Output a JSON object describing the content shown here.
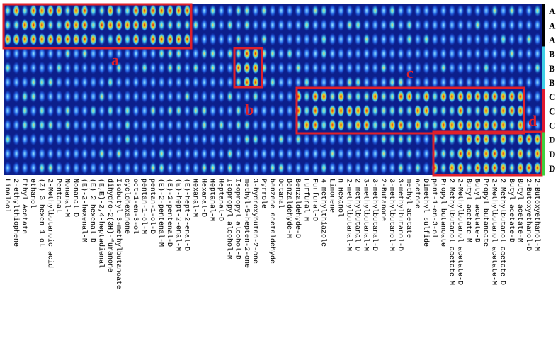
{
  "heatmap": {
    "column_labels": [
      "Linalool",
      "2-ethylthiophene",
      "Ethyl Acetate",
      "ethanol",
      "(Z)-3-hexen-1-ol",
      "2-Methylbutanoic acid",
      "Pentanal",
      "Nonanal-M",
      "Nonanal-D",
      "(E)-2-hexenal-M",
      "(E)-2-hexenal-D",
      "(E,E)-2,4-heptadienal",
      "dihydro-2(3H)-furanone",
      "Isobutyl 3-methylbutanoate",
      "cyclohexanone",
      "oct-1-en-3-ol",
      "pentan-1-ol-M",
      "pentan-1-ol-D",
      "(E)-2-pentenal-M",
      "(E)-2-pentenal-D",
      "(E)-hept-2-enal-M",
      "(E)-hept-2-enal-D",
      "Hexanal-M",
      "Hexanal-D",
      "Heptanal-M",
      "Heptanal-D",
      "Isopropyl alcohol-M",
      "Isopropyl alcohol-D",
      "methyl-5-hepten-2-one",
      "3-hydroxybutan-2-one",
      "Pyrrole",
      "benzene acetaldehyde",
      "Octanal",
      "Benzaldehyde-M",
      "Benzaldehyde-D",
      "Furfural-M",
      "Furfural-D",
      "4-methylthiazole",
      "Limonene",
      "n-Hexanol",
      "2-methylbutanal-M",
      "2-methylbutanal-D",
      "3-methylbutanal-M",
      "3-methylbutanal-D",
      "2-Butanone",
      "3-methylbutanol-M",
      "3-methylbutanol-D",
      "methyl acetate",
      "acetone",
      "Dimethyl sulfide",
      "pent-1-en-3-ol",
      "Propyl butanoate",
      "2-Methylbutanol acetate-M",
      "2-Methylbutanol acetate-D",
      "Butyl acetate-M",
      "Butyl acetate-D",
      "Propyl butanoate",
      "2-Methylbutanol acetate-M",
      "2-Methylbutanol acetate-D",
      "Butyl acetate-D",
      "Butyl acetate-M",
      "2-Butoxyethanol-D",
      "2-Butoxyethanol-M"
    ],
    "row_labels": [
      "A",
      "A",
      "A",
      "B",
      "B",
      "B",
      "C",
      "C",
      "C",
      "D",
      "D",
      "D"
    ],
    "region_labels": [
      "a",
      "b",
      "c",
      "d"
    ]
  }
}
